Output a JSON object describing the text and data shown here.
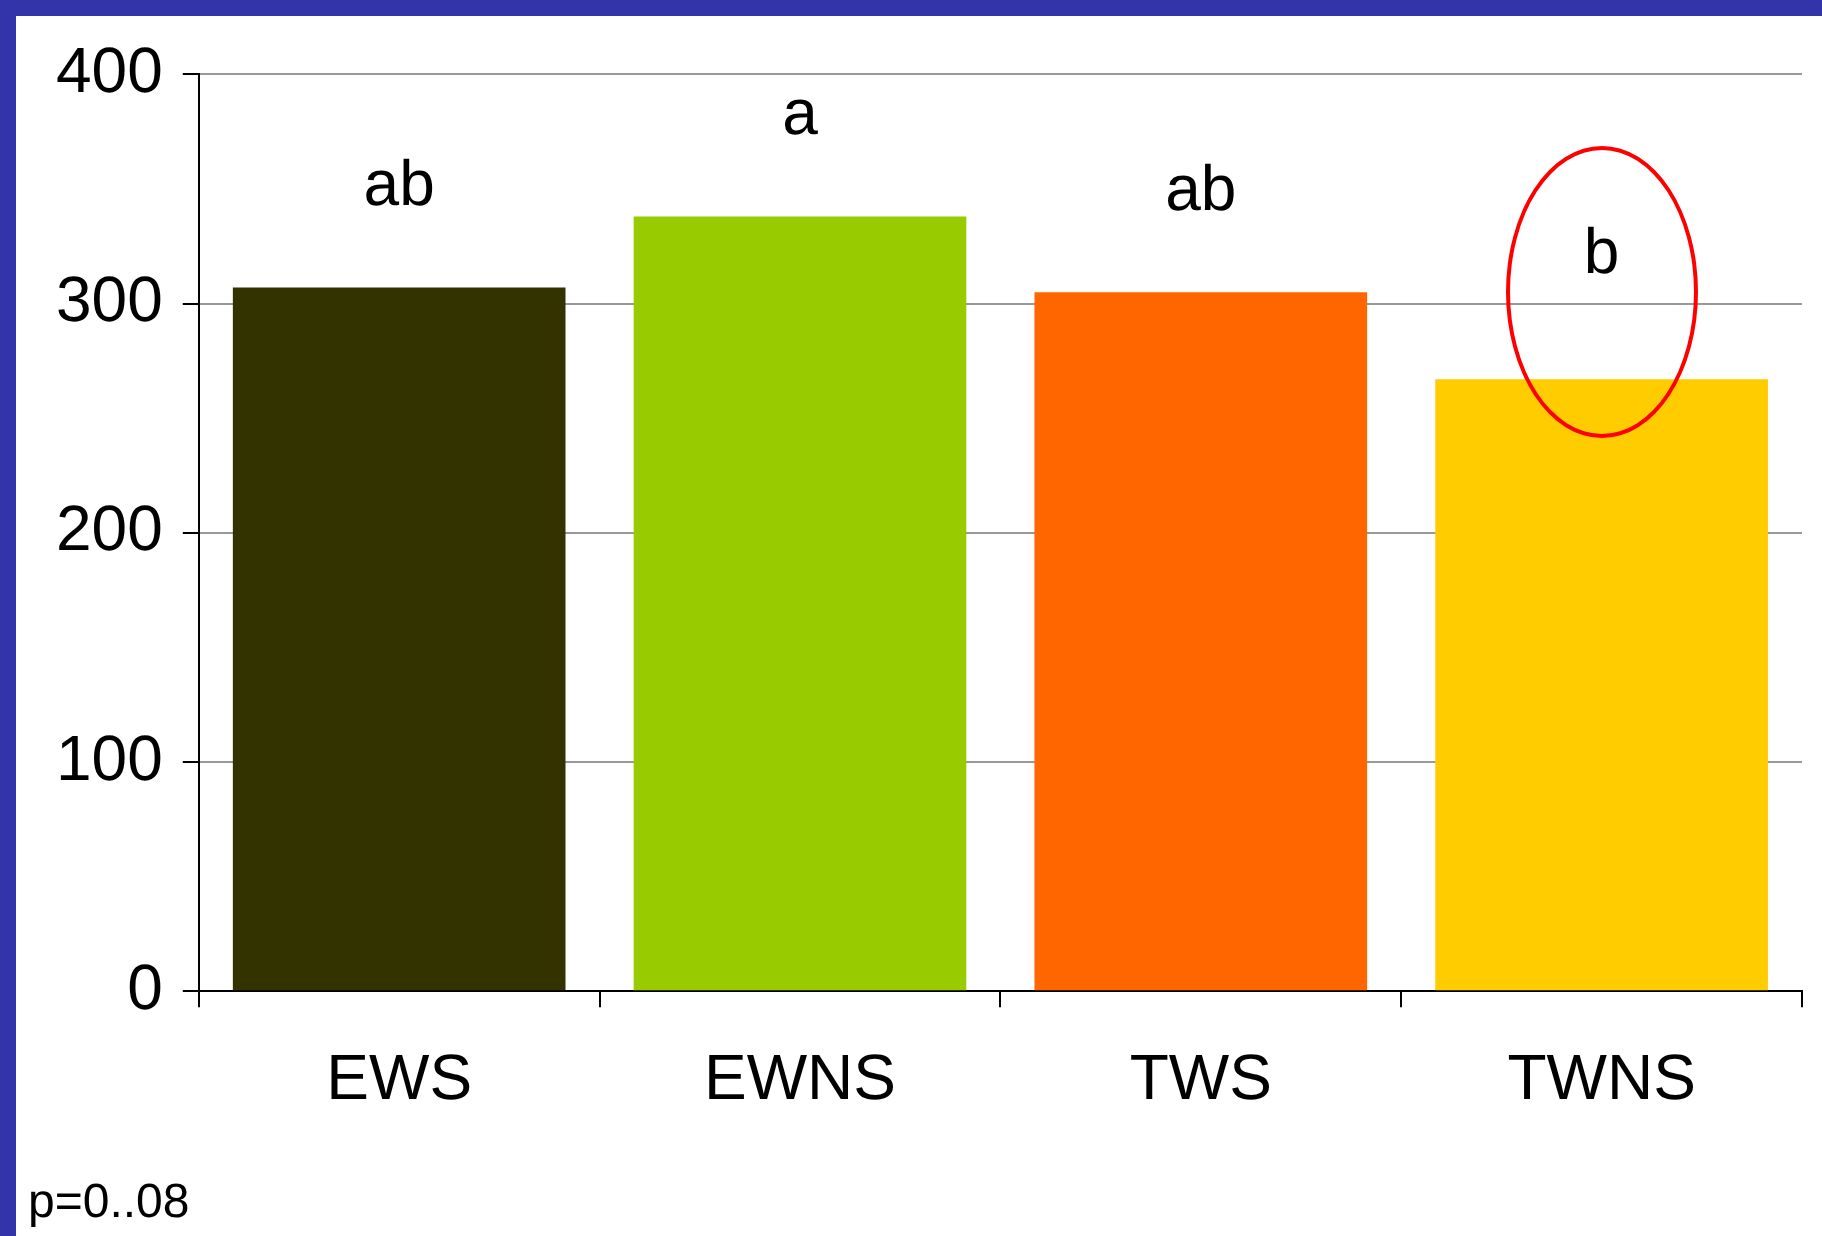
{
  "chart_data": {
    "type": "bar",
    "categories": [
      "EWS",
      "EWNS",
      "TWS",
      "TWNS"
    ],
    "values": [
      307,
      338,
      305,
      267
    ],
    "colors": [
      "#333300",
      "#99cc00",
      "#ff6600",
      "#ffcc00"
    ],
    "ylim": [
      0,
      400
    ],
    "yticks": [
      0,
      100,
      200,
      300,
      400
    ],
    "grid": "y",
    "legend": false,
    "annotations": [
      "ab",
      "a",
      "ab",
      "b",
      "p=0..08"
    ]
  }
}
